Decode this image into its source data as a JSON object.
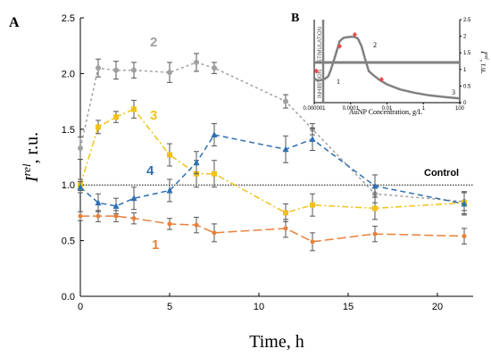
{
  "colors": {
    "series1": "#E8803A",
    "series2": "#A0A0A0",
    "series3": "#F2C21B",
    "series4": "#2E6FB0",
    "control": "#000000",
    "axis": "#000000",
    "inset_curve": "#808080",
    "inset_marker": "#E84A4A"
  },
  "chart_data": [
    {
      "type": "line",
      "panel_label": "A",
      "xlabel": "Time, h",
      "ylabel_main": "I",
      "ylabel_sup": "rel",
      "ylabel_unit": ", r.u.",
      "xlim": [
        0,
        22
      ],
      "ylim": [
        0,
        2.5
      ],
      "x_ticks": [
        0,
        5,
        10,
        15,
        20
      ],
      "y_ticks": [
        0,
        0.5,
        1.0,
        1.5,
        2.0,
        2.5
      ],
      "y_tick_labels": [
        "0.0",
        "0.5",
        "1.0",
        "1.5",
        "2.0",
        "2.5"
      ],
      "control": {
        "label": "Control",
        "y": 1.0
      },
      "series": [
        {
          "name": "2",
          "marker": "circle",
          "dash": "3,3",
          "x": [
            0,
            1,
            2,
            3,
            5,
            6.5,
            7.5,
            11.5,
            13,
            16.5,
            21.5
          ],
          "y": [
            1.33,
            2.05,
            2.03,
            2.03,
            2.01,
            2.1,
            2.05,
            1.75,
            1.5,
            0.92,
            0.85
          ],
          "err": [
            0.1,
            0.08,
            0.08,
            0.07,
            0.09,
            0.08,
            0.05,
            0.06,
            0.05,
            0.08,
            0.08
          ]
        },
        {
          "name": "3",
          "marker": "square",
          "dash": "7,3,2,3",
          "x": [
            0,
            1,
            2,
            3,
            5,
            6.5,
            7.5,
            11.5,
            13,
            16.5,
            21.5
          ],
          "y": [
            1.0,
            1.52,
            1.61,
            1.68,
            1.27,
            1.1,
            1.1,
            0.75,
            0.82,
            0.79,
            0.84
          ],
          "err": [
            0.05,
            0.06,
            0.05,
            0.08,
            0.1,
            0.12,
            0.12,
            0.08,
            0.1,
            0.1,
            0.1
          ]
        },
        {
          "name": "4",
          "marker": "triangle",
          "dash": "6,4",
          "x": [
            0,
            1,
            2,
            3,
            5,
            6.5,
            7.5,
            11.5,
            13,
            16.5,
            21.5
          ],
          "y": [
            0.98,
            0.84,
            0.81,
            0.88,
            0.95,
            1.2,
            1.45,
            1.32,
            1.41,
            0.99,
            0.83
          ],
          "err": [
            0.05,
            0.08,
            0.07,
            0.1,
            0.1,
            0.1,
            0.1,
            0.12,
            0.1,
            0.1,
            0.1
          ]
        },
        {
          "name": "1",
          "marker": "circle-small",
          "dash": "10,4",
          "x": [
            0,
            1,
            2,
            3,
            5,
            6.5,
            7.5,
            11.5,
            13,
            16.5,
            21.5
          ],
          "y": [
            0.72,
            0.72,
            0.72,
            0.7,
            0.65,
            0.64,
            0.57,
            0.61,
            0.49,
            0.56,
            0.54
          ],
          "err": [
            0.04,
            0.05,
            0.05,
            0.05,
            0.05,
            0.07,
            0.08,
            0.08,
            0.08,
            0.07,
            0.07
          ]
        }
      ]
    },
    {
      "type": "line",
      "panel_label": "B",
      "xlabel": "AuNP Concentration, g/L",
      "ylabel_main": "I",
      "ylabel_sup": "rel",
      "ylabel_unit": ", r.u.",
      "x_scale": "log",
      "xlim": [
        1e-06,
        100
      ],
      "ylim": [
        0,
        2.5
      ],
      "x_tick_values": [
        1e-06,
        0.0001,
        0.01,
        1,
        100
      ],
      "x_tick_labels": [
        "0.000001",
        "0.0001",
        "0.01",
        "1",
        "100"
      ],
      "y_ticks": [
        0,
        0.5,
        1,
        1.5,
        2,
        2.5
      ],
      "y_tick_labels": [
        "0",
        "0.5",
        "1",
        "1.5",
        "2",
        "2.5"
      ],
      "region_labels": [
        "STIMULATION",
        "INHIBITION"
      ],
      "point_labels": [
        "1",
        "2",
        "3"
      ],
      "curve": {
        "x": [
          1e-06,
          1.6e-06,
          2.5e-06,
          4e-06,
          6e-06,
          9e-06,
          1.5e-05,
          2.5e-05,
          4e-05,
          6e-05,
          0.0001,
          0.00016,
          0.00025,
          0.0004,
          0.0006,
          0.001,
          0.002,
          0.004,
          0.01,
          0.05,
          0.3,
          2,
          20,
          100
        ],
        "y": [
          0.72,
          0.66,
          0.68,
          0.72,
          0.8,
          1.05,
          1.45,
          1.85,
          1.95,
          1.97,
          1.98,
          1.98,
          1.93,
          1.7,
          1.35,
          0.95,
          0.8,
          0.68,
          0.55,
          0.4,
          0.3,
          0.22,
          0.16,
          0.13
        ]
      },
      "markers": {
        "x": [
          1.3e-06,
          2.5e-05,
          0.00017,
          0.005
        ],
        "y": [
          0.95,
          1.7,
          2.05,
          0.7
        ]
      }
    }
  ]
}
